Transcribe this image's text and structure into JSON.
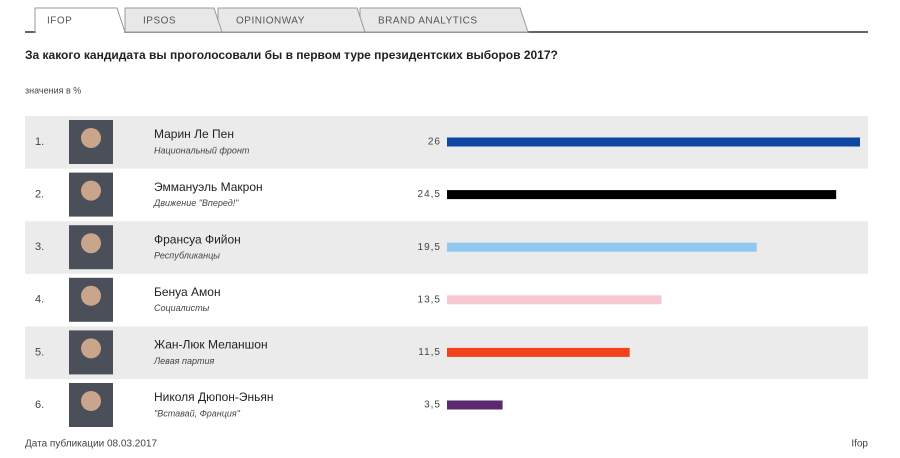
{
  "tabs": [
    "IFOP",
    "IPSOS",
    "OPINIONWAY",
    "BRAND ANALYTICS"
  ],
  "chart_data": {
    "type": "hbar",
    "title": "За какого кандидата вы проголосовали бы в первом туре президентских выборов 2017?",
    "subtitle": "значения в %",
    "ranks": [
      "1.",
      "2.",
      "3.",
      "4.",
      "5.",
      "6."
    ],
    "categories": [
      "Марин Ле Пен",
      "Эммануэль Макрон",
      "Франсуа Фийон",
      "Бенуа Амон",
      "Жан-Люк Меланшон",
      "Николя Дюпон-Эньян"
    ],
    "parties": [
      "Национальный фронт",
      "Движение \"Вперед!\"",
      "Республиканцы",
      "Социалисты",
      "Левая партия",
      "\"Вставай, Франция\""
    ],
    "values": [
      26,
      24.5,
      19.5,
      13.5,
      11.5,
      3.5
    ],
    "value_labels": [
      "26",
      "24,5",
      "19,5",
      "13,5",
      "11,5",
      "3,5"
    ],
    "colors": [
      "#0d47a1",
      "#000000",
      "#90c8ef",
      "#f7c8d2",
      "#f2411b",
      "#5b2a6e"
    ]
  },
  "footer": {
    "date": "Дата публикации 08.03.2017",
    "source": "Ifop"
  }
}
